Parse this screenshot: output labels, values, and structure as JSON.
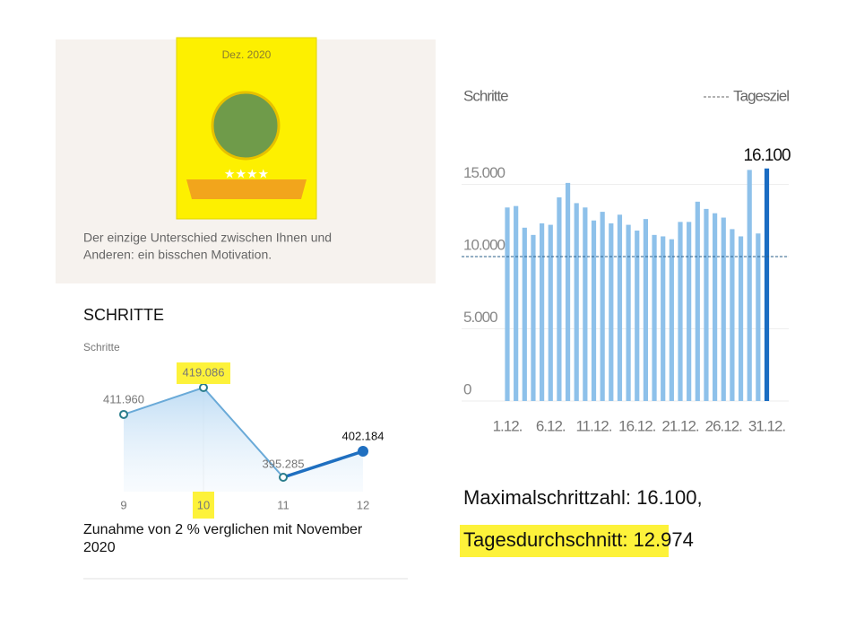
{
  "card": {
    "badge_title": "Dez. 2020",
    "text_line1": "Der einzige Unterschied zwischen Ihnen und",
    "text_line2": "Anderen: ein bisschen Motivation."
  },
  "section_title": "SCHRITTE",
  "caption_line1": "Zunahme von 2 % verglichen mit November",
  "caption_line2": "2020",
  "summary": {
    "max": "Maximalschrittzahl: 16.100,",
    "average": "Tagesdurchschnitt: 12.974"
  },
  "chart_data": [
    {
      "type": "line",
      "y_label": "Schritte",
      "categories": [
        "9",
        "10",
        "11",
        "12"
      ],
      "values": [
        411960,
        419086,
        395285,
        402184
      ],
      "value_labels": [
        "411.960",
        "419.086",
        "395.285",
        "402.184"
      ],
      "color": "#6aaad8",
      "highlight_color": "#1f6fc0"
    },
    {
      "type": "bar",
      "y_label": "Schritte",
      "legend": "Tagesziel",
      "goal": 10000,
      "categories": [
        "1.12.",
        null,
        null,
        null,
        null,
        "6.12.",
        null,
        null,
        null,
        null,
        "11.12.",
        null,
        null,
        null,
        null,
        "16.12.",
        null,
        null,
        null,
        null,
        "21.12.",
        null,
        null,
        null,
        null,
        "26.12.",
        null,
        null,
        null,
        null,
        "31.12."
      ],
      "values": [
        13400,
        13500,
        12000,
        11500,
        12300,
        12200,
        14100,
        15100,
        13700,
        13400,
        12500,
        13100,
        12300,
        12900,
        12200,
        11800,
        12600,
        11500,
        11400,
        11200,
        12400,
        12400,
        13800,
        13300,
        13000,
        12700,
        11900,
        11400,
        16000,
        11600,
        16100
      ],
      "value_labels": [
        null,
        null,
        null,
        null,
        null,
        null,
        null,
        null,
        null,
        null,
        null,
        null,
        null,
        null,
        null,
        null,
        null,
        null,
        null,
        null,
        null,
        null,
        null,
        null,
        null,
        null,
        null,
        null,
        null,
        null,
        "16.100"
      ],
      "colors": [
        "#8ec1ea",
        "#8ec1ea",
        "#8ec1ea",
        "#8ec1ea",
        "#8ec1ea",
        "#8ec1ea",
        "#8ec1ea",
        "#8ec1ea",
        "#8ec1ea",
        "#8ec1ea",
        "#8ec1ea",
        "#8ec1ea",
        "#8ec1ea",
        "#8ec1ea",
        "#8ec1ea",
        "#8ec1ea",
        "#8ec1ea",
        "#8ec1ea",
        "#8ec1ea",
        "#8ec1ea",
        "#8ec1ea",
        "#8ec1ea",
        "#8ec1ea",
        "#8ec1ea",
        "#8ec1ea",
        "#8ec1ea",
        "#8ec1ea",
        "#8ec1ea",
        "#8ec1ea",
        "#8ec1ea",
        "#1a6cc2"
      ],
      "ylim": [
        0,
        17000
      ],
      "yticks": [
        0,
        {
          "value": 5000,
          "label": "5.000"
        },
        {
          "value": 10000,
          "label": "10.000"
        },
        {
          "value": 15000,
          "label": "15.000"
        }
      ],
      "grid": true
    }
  ]
}
